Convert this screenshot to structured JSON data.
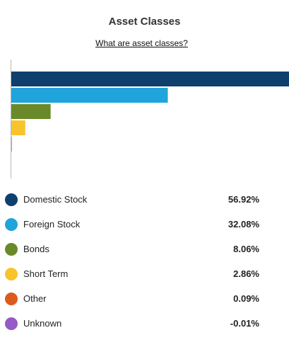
{
  "header": {
    "title": "Asset Classes",
    "help_link": "What are asset classes?"
  },
  "chart_data": {
    "type": "bar",
    "orientation": "horizontal",
    "xlim": [
      0,
      56.92
    ],
    "categories": [
      "Domestic Stock",
      "Foreign Stock",
      "Bonds",
      "Short Term",
      "Other",
      "Unknown"
    ],
    "values": [
      56.92,
      32.08,
      8.06,
      2.86,
      0.09,
      -0.01
    ],
    "colors": [
      "#0f3f6c",
      "#1fa4dc",
      "#6a8a2a",
      "#f8c32c",
      "#dc5a1c",
      "#955ac5"
    ],
    "grid": false,
    "legend": "bottom"
  },
  "legend": {
    "items": [
      {
        "label": "Domestic Stock",
        "value": "56.92%",
        "color": "#0f3f6c"
      },
      {
        "label": "Foreign Stock",
        "value": "32.08%",
        "color": "#1fa4dc"
      },
      {
        "label": "Bonds",
        "value": "8.06%",
        "color": "#6a8a2a"
      },
      {
        "label": "Short Term",
        "value": "2.86%",
        "color": "#f8c32c"
      },
      {
        "label": "Other",
        "value": "0.09%",
        "color": "#dc5a1c"
      },
      {
        "label": "Unknown",
        "value": "-0.01%",
        "color": "#955ac5"
      }
    ]
  }
}
